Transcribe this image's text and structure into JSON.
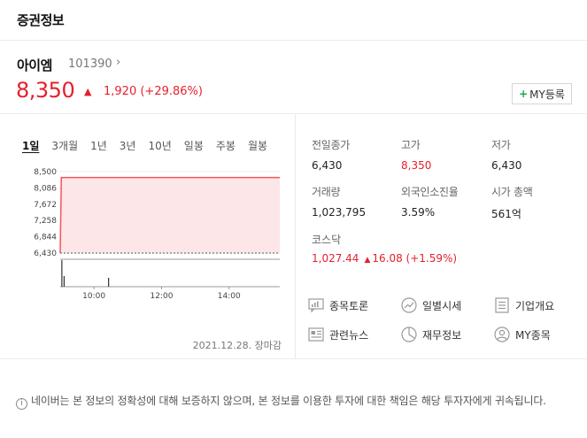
{
  "header": {
    "title": "증권정보"
  },
  "stock": {
    "name": "아이엠",
    "code": "101390",
    "code_arrow": "›",
    "price": "8,350",
    "change_arrow": "▲",
    "change": "1,920 (+29.86%)",
    "my_button": {
      "plus": "+",
      "label": "MY등록"
    }
  },
  "periods": [
    "1일",
    "3개월",
    "1년",
    "3년",
    "10년",
    "일봉",
    "주봉",
    "월봉"
  ],
  "chart_data": {
    "type": "area",
    "ylabels": [
      "8,500",
      "8,086",
      "7,672",
      "7,258",
      "6,844",
      "6,430"
    ],
    "xlabels": [
      "10:00",
      "12:00",
      "14:00"
    ],
    "ylim": [
      6430,
      8500
    ],
    "prev_close": 6430,
    "x": [
      "09:00",
      "09:02",
      "15:30"
    ],
    "values": [
      6430,
      8350,
      8350
    ],
    "colors": {
      "line": "#f3545a",
      "fill": "#fde6e7"
    }
  },
  "chart_date": "2021.12.28. 장마감",
  "stats": {
    "prev_close": {
      "label": "전일종가",
      "value": "6,430"
    },
    "high": {
      "label": "고가",
      "value": "8,350"
    },
    "low": {
      "label": "저가",
      "value": "6,430"
    },
    "volume": {
      "label": "거래량",
      "value": "1,023,795"
    },
    "foreign": {
      "label": "외국인소진율",
      "value": "3.59%"
    },
    "market_cap": {
      "label": "시가 총액",
      "value": "561억"
    }
  },
  "kosdaq": {
    "label": "코스닥",
    "value": "1,027.44",
    "arrow": "▲",
    "change": "16.08 (+1.59%)"
  },
  "links": [
    {
      "label": "종목토론",
      "icon": "discussion-icon"
    },
    {
      "label": "일별시세",
      "icon": "trend-icon"
    },
    {
      "label": "기업개요",
      "icon": "document-icon"
    },
    {
      "label": "관련뉴스",
      "icon": "news-icon"
    },
    {
      "label": "재무정보",
      "icon": "pie-chart-icon"
    },
    {
      "label": "MY종목",
      "icon": "user-icon"
    }
  ],
  "disclaimer": "네이버는 본 정보의 정확성에 대해 보증하지 않으며, 본 정보를 이용한 투자에 대한 책임은 해당 투자자에게 귀속됩니다.",
  "colors": {
    "red": "#e5202d",
    "green": "#1aa94a"
  }
}
